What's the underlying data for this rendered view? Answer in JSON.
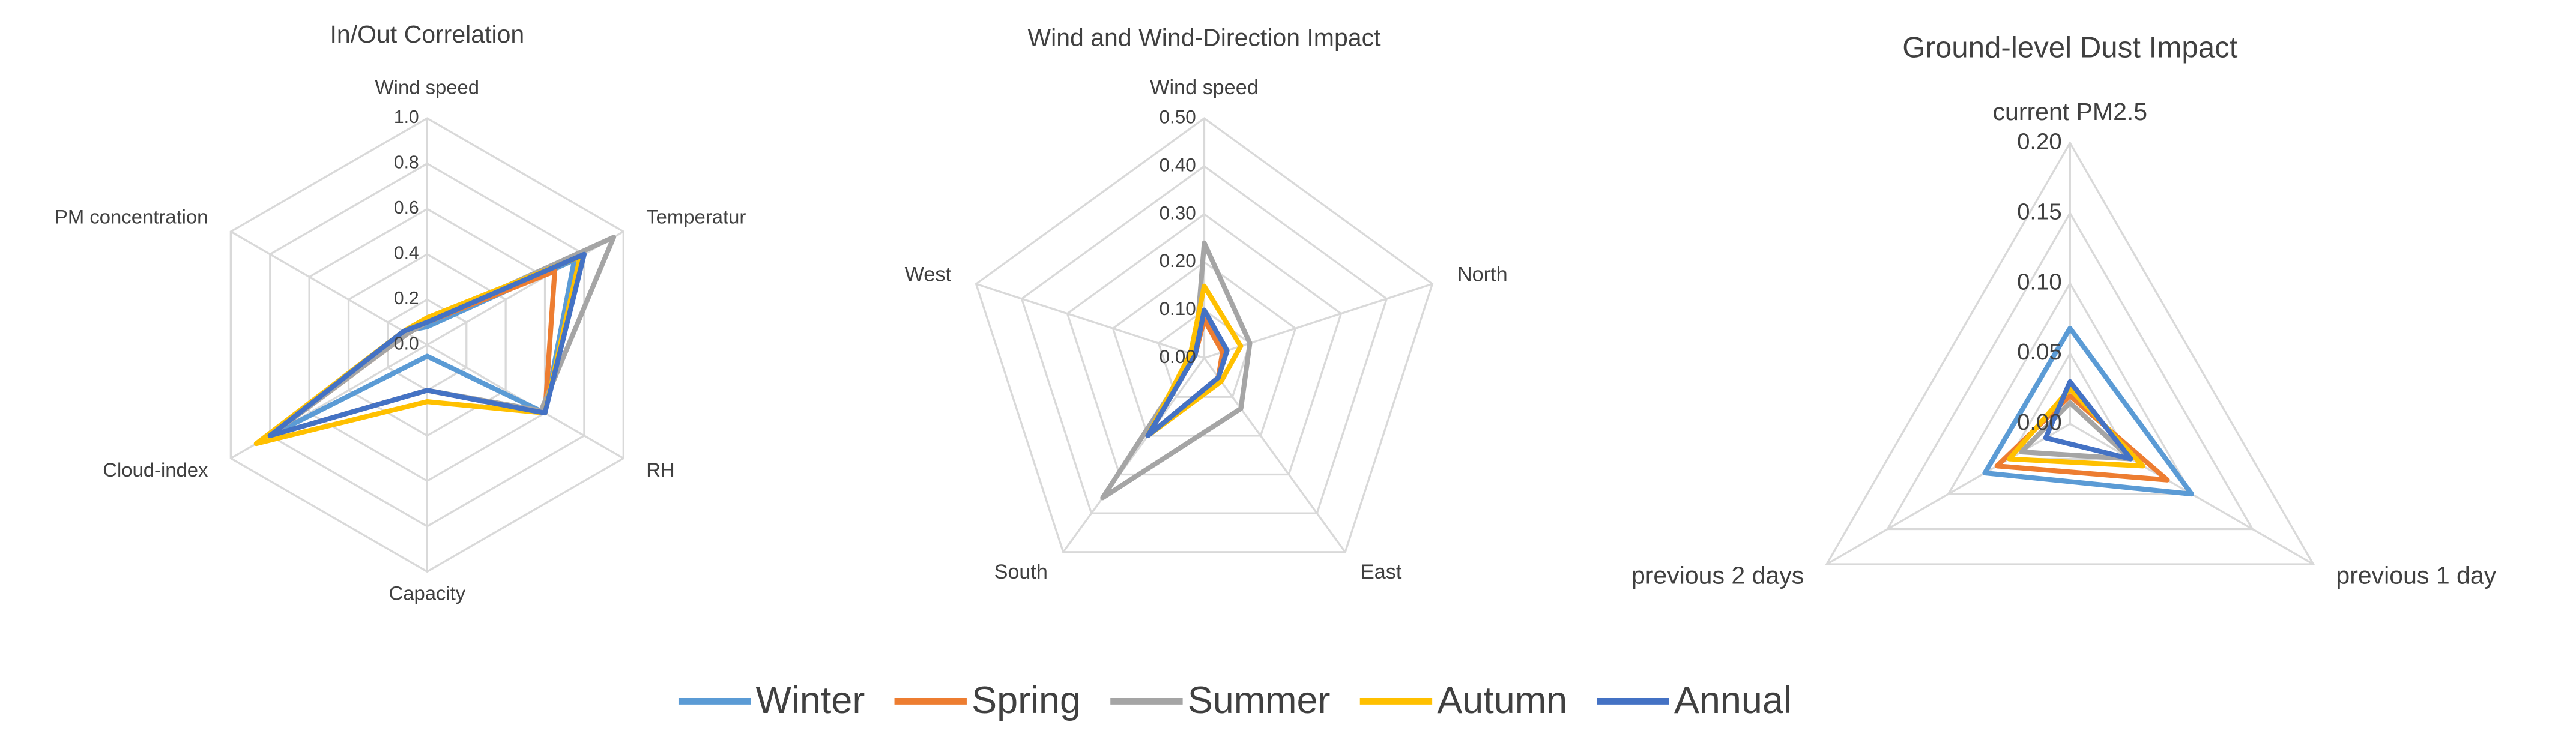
{
  "chart_data": [
    {
      "type": "radar",
      "title": "In/Out Correlation",
      "categories": [
        "Wind speed",
        "Temperatur",
        "RH",
        "Capacity",
        "Cloud-index",
        "PM concentration"
      ],
      "ylim": [
        0,
        1
      ],
      "yticks": [
        {
          "value": 0,
          "label": "0.0"
        },
        0.2,
        0.4,
        0.6,
        0.8,
        {
          "value": 1,
          "label": "1.0"
        }
      ],
      "series": [
        {
          "name": "Winter",
          "color": "#5b9bd5",
          "values": [
            0.08,
            0.75,
            0.6,
            0.05,
            0.8,
            0.12
          ]
        },
        {
          "name": "Spring",
          "color": "#ed7d31",
          "values": [
            0.1,
            0.65,
            0.6,
            0.2,
            0.8,
            0.1
          ]
        },
        {
          "name": "Summer",
          "color": "#a5a5a5",
          "values": [
            0.1,
            0.95,
            0.58,
            0.2,
            0.8,
            0.1
          ]
        },
        {
          "name": "Autumn",
          "color": "#ffc000",
          "values": [
            0.12,
            0.78,
            0.6,
            0.25,
            0.87,
            0.12
          ]
        },
        {
          "name": "Annual",
          "color": "#4472c4",
          "values": [
            0.1,
            0.8,
            0.6,
            0.2,
            0.8,
            0.12
          ]
        }
      ]
    },
    {
      "type": "radar",
      "title": "Wind and Wind-Direction Impact",
      "categories": [
        "Wind speed",
        "North",
        "East",
        "South",
        "West"
      ],
      "ylim": [
        0,
        0.5
      ],
      "yticks": [
        {
          "value": 0,
          "label": "0.00"
        },
        {
          "value": 0.1,
          "label": "0.10"
        },
        {
          "value": 0.2,
          "label": "0.20"
        },
        {
          "value": 0.3,
          "label": "0.30"
        },
        {
          "value": 0.4,
          "label": "0.40"
        },
        {
          "value": 0.5,
          "label": "0.50"
        }
      ],
      "series": [
        {
          "values": [
            0.1,
            0.05,
            0.05,
            0.2,
            0.02
          ]
        },
        {
          "values": [
            0.08,
            0.04,
            0.05,
            0.2,
            0.02
          ]
        },
        {
          "values": [
            0.24,
            0.1,
            0.13,
            0.36,
            0.02
          ]
        },
        {
          "values": [
            0.15,
            0.08,
            0.06,
            0.2,
            0.03
          ]
        },
        {
          "values": [
            0.1,
            0.05,
            0.05,
            0.2,
            0.02
          ]
        }
      ]
    },
    {
      "type": "radar",
      "title": "Ground-level Dust Impact",
      "categories": [
        "current PM2.5",
        "previous 1 day",
        "previous 2 days"
      ],
      "ylim": [
        0,
        0.2
      ],
      "yticks": [
        {
          "value": 0,
          "label": "0.00"
        },
        {
          "value": 0.05,
          "label": "0.05"
        },
        {
          "value": 0.1,
          "label": "0.10"
        },
        {
          "value": 0.15,
          "label": "0.15"
        },
        {
          "value": 0.2,
          "label": "0.20"
        }
      ],
      "series": [
        {
          "values": [
            0.068,
            0.1,
            0.07
          ]
        },
        {
          "values": [
            0.02,
            0.08,
            0.06
          ]
        },
        {
          "values": [
            0.015,
            0.05,
            0.04
          ]
        },
        {
          "values": [
            0.025,
            0.06,
            0.05
          ]
        },
        {
          "values": [
            0.03,
            0.05,
            0.02
          ]
        }
      ]
    }
  ]
}
